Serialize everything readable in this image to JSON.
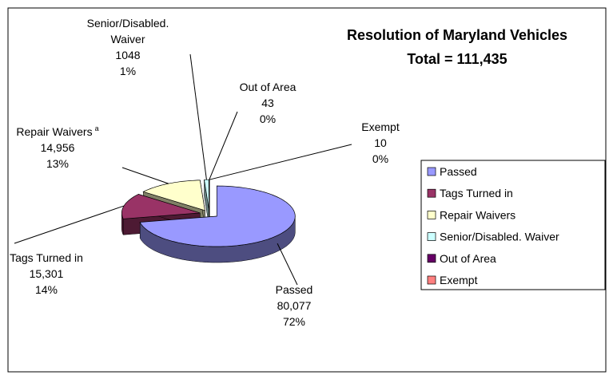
{
  "chart_data": {
    "type": "pie3d",
    "title": "Resolution of Maryland Vehicles",
    "subtitle": "Total = 111,435",
    "categories": [
      "Passed",
      "Tags Turned in",
      "Repair Waivers",
      "Senior/Disabled. Waiver",
      "Out of Area",
      "Exempt"
    ],
    "values": [
      80077,
      15301,
      14956,
      1048,
      43,
      10
    ],
    "value_labels": [
      "80,077",
      "15,301",
      "14,956",
      "1048",
      "43",
      "10"
    ],
    "percent_labels": [
      "72%",
      "14%",
      "13%",
      "1%",
      "0%",
      "0%"
    ],
    "label_marks": [
      null,
      null,
      "a",
      null,
      null,
      null
    ],
    "colors": [
      "#9999ff",
      "#993366",
      "#ffffcc",
      "#ccffff",
      "#660066",
      "#ff8080"
    ],
    "legend": "right"
  }
}
